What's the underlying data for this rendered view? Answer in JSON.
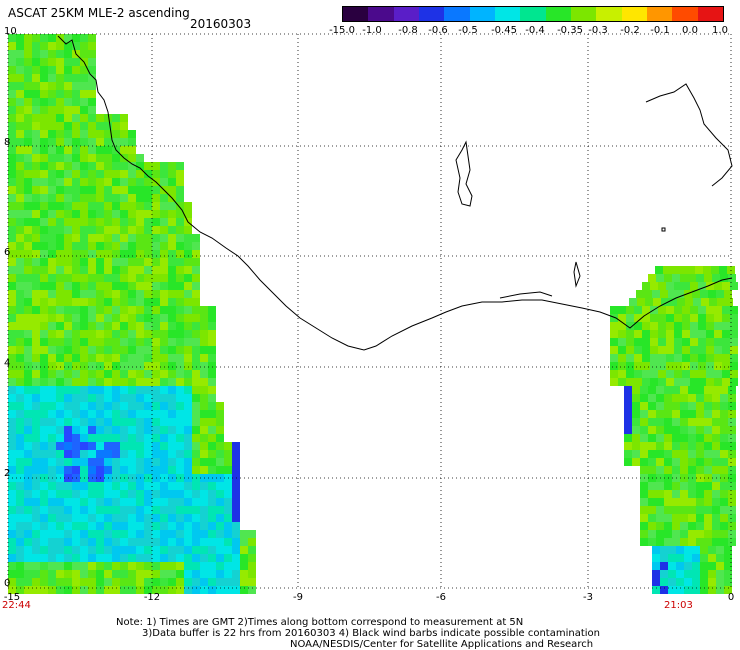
{
  "header": {
    "title": "ASCAT 25KM MLE-2 ascending",
    "date": "20160303"
  },
  "colorbar": {
    "labels": [
      "-15.0",
      "-1.0",
      "-0.8",
      "-0.6",
      "-0.5",
      "-0.45",
      "-0.4",
      "-0.35",
      "-0.3",
      "-0.2",
      "-0.1",
      "0.0",
      "1.0"
    ],
    "colors": [
      "#2a0040",
      "#4b0a8c",
      "#5a1ec8",
      "#1e32e6",
      "#0a78ff",
      "#00b4ff",
      "#00e6e6",
      "#00e690",
      "#28e628",
      "#7ce600",
      "#c8f000",
      "#ffe600",
      "#ff9600",
      "#ff4b00",
      "#e61414"
    ]
  },
  "axes": {
    "x_ticks": [
      "-15",
      "-12",
      "-9",
      "-6",
      "-3",
      "0"
    ],
    "y_ticks": [
      "0",
      "2",
      "4",
      "6",
      "8",
      "10"
    ]
  },
  "times": {
    "left": "22:44",
    "right": "21:03"
  },
  "notes": {
    "line1": "Note: 1) Times are GMT 2)Times along bottom correspond to measurement at 5N",
    "line2": "3)Data buffer is 22 hrs from 20160303 4) Black wind barbs indicate possible contamination",
    "line3": "NOAA/NESDIS/Center for Satellite Applications and Research"
  }
}
